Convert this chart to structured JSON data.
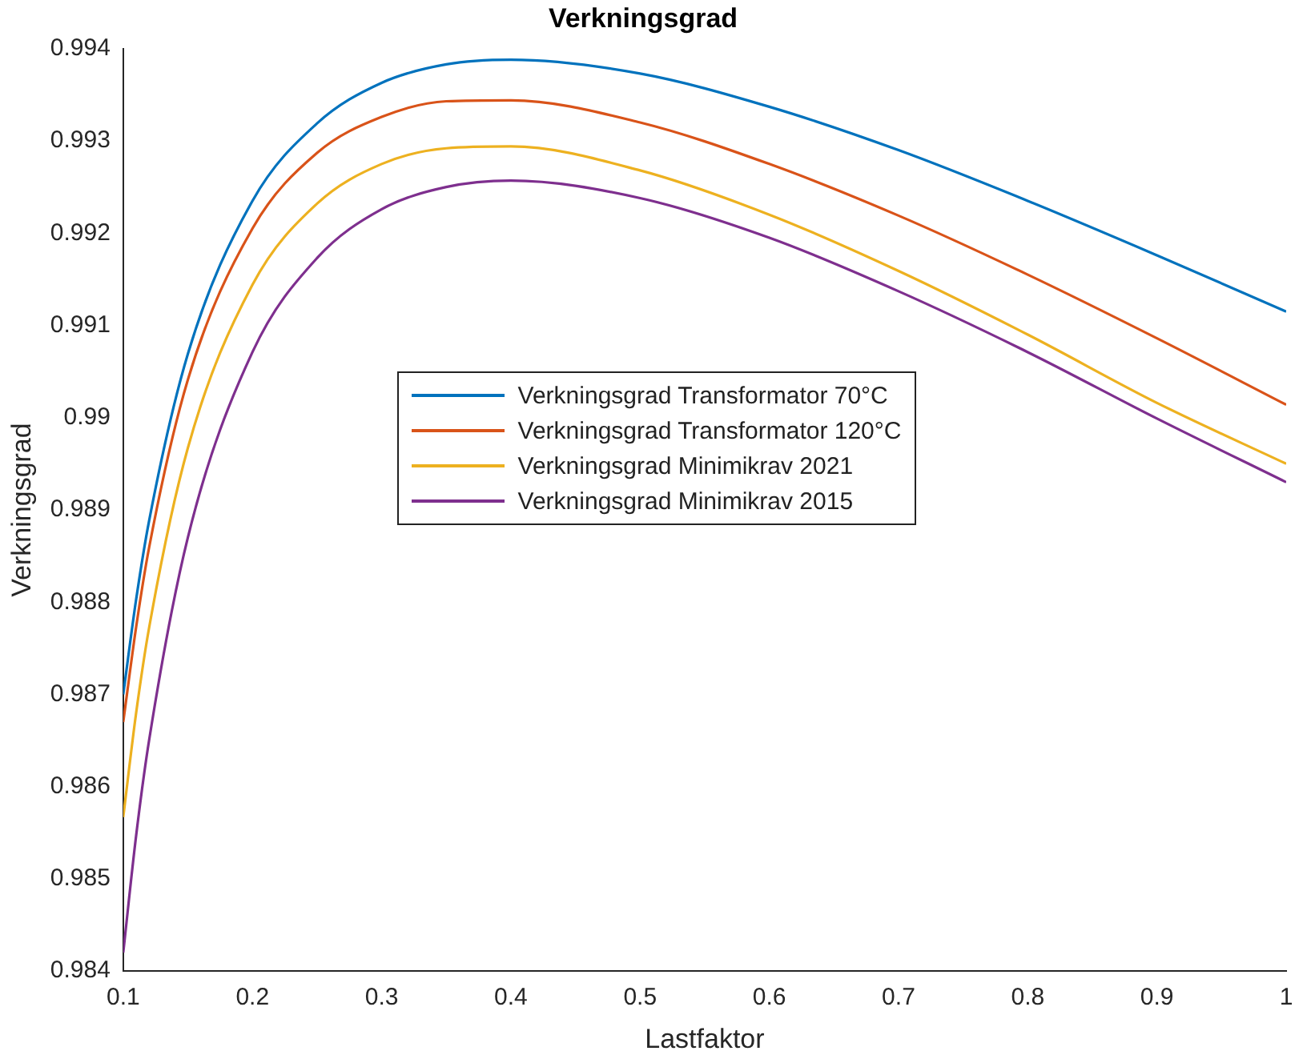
{
  "chart_data": {
    "type": "line",
    "title": "Verkningsgrad",
    "xlabel": "Lastfaktor",
    "ylabel": "Verkningsgrad",
    "x": [
      0.1,
      0.11,
      0.12,
      0.15,
      0.2,
      0.25,
      0.3,
      0.35,
      0.4,
      0.5,
      0.6,
      0.7,
      0.8,
      0.9,
      1.0
    ],
    "series": [
      {
        "name": "Verkningsgrad Transformator 70°C",
        "color": "#0072bd",
        "values": [
          0.987,
          0.98803,
          0.98888,
          0.99069,
          0.99235,
          0.99319,
          0.99363,
          0.99383,
          0.99388,
          0.99373,
          0.99337,
          0.9929,
          0.99235,
          0.99176,
          0.99115
        ]
      },
      {
        "name": "Verkningsgrad Transformator 120°C",
        "color": "#d95319",
        "values": [
          0.9867,
          0.98773,
          0.98859,
          0.99041,
          0.99205,
          0.99287,
          0.99326,
          0.99343,
          0.99344,
          0.9932,
          0.99275,
          0.99219,
          0.99155,
          0.99086,
          0.99014
        ]
      },
      {
        "name": "Verkningsgrad Minimikrav 2021",
        "color": "#edb120",
        "values": [
          0.98567,
          0.9868,
          0.98772,
          0.98967,
          0.99144,
          0.99232,
          0.99275,
          0.99292,
          0.99294,
          0.99268,
          0.9922,
          0.99159,
          0.9909,
          0.99016,
          0.9895
        ]
      },
      {
        "name": "Verkningsgrad Minimikrav 2015",
        "color": "#7e2f8e",
        "values": [
          0.9842,
          0.98547,
          0.9865,
          0.9887,
          0.99071,
          0.99173,
          0.99226,
          0.9925,
          0.99257,
          0.99238,
          0.99195,
          0.99137,
          0.99071,
          0.98999,
          0.9893
        ]
      }
    ],
    "xlim": [
      0.1,
      1
    ],
    "xticks": [
      0.1,
      0.2,
      0.3,
      0.4,
      0.5,
      0.6,
      0.7,
      0.8,
      0.9,
      1
    ],
    "ylim": [
      0.984,
      0.994
    ],
    "yticks": [
      0.984,
      0.985,
      0.986,
      0.987,
      0.988,
      0.989,
      0.99,
      0.991,
      0.992,
      0.993,
      0.994
    ],
    "grid": false,
    "legend": "right",
    "marker": "none",
    "line_style": "solid"
  }
}
